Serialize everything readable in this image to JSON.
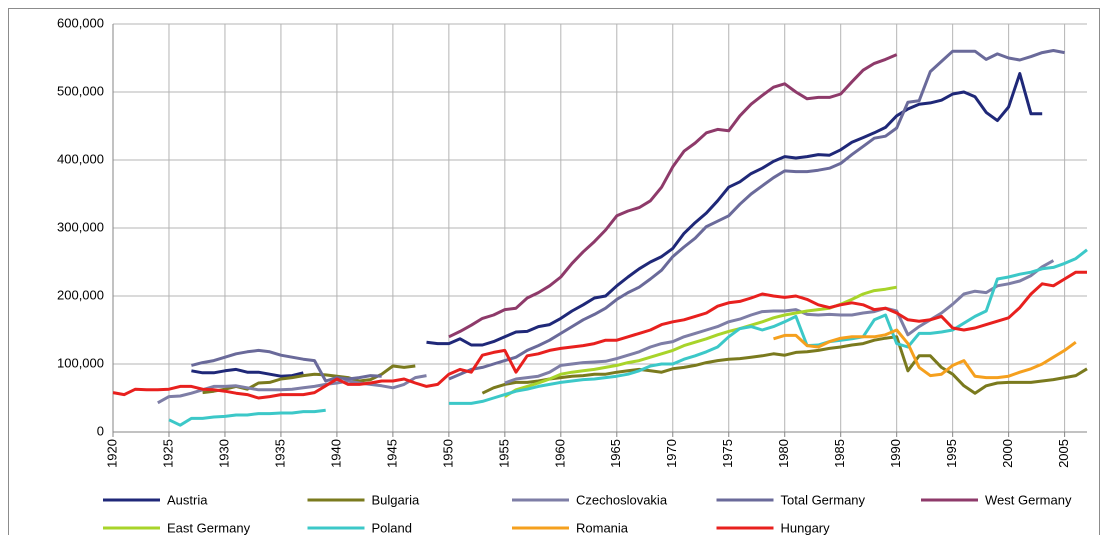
{
  "chart_data": {
    "type": "line",
    "x": [
      1920,
      1921,
      1922,
      1923,
      1924,
      1925,
      1926,
      1927,
      1928,
      1929,
      1930,
      1931,
      1932,
      1933,
      1934,
      1935,
      1936,
      1937,
      1938,
      1939,
      1940,
      1941,
      1942,
      1943,
      1944,
      1945,
      1946,
      1947,
      1948,
      1949,
      1950,
      1951,
      1952,
      1953,
      1954,
      1955,
      1956,
      1957,
      1958,
      1959,
      1960,
      1961,
      1962,
      1963,
      1964,
      1965,
      1966,
      1967,
      1968,
      1969,
      1970,
      1971,
      1972,
      1973,
      1974,
      1975,
      1976,
      1977,
      1978,
      1979,
      1980,
      1981,
      1982,
      1983,
      1984,
      1985,
      1986,
      1987,
      1988,
      1989,
      1990,
      1991,
      1992,
      1993,
      1994,
      1995,
      1996,
      1997,
      1998,
      1999,
      2000,
      2001,
      2002,
      2003,
      2004,
      2005,
      2006,
      2007
    ],
    "xlim": [
      1920,
      2007
    ],
    "xticks": [
      1920,
      1925,
      1930,
      1935,
      1940,
      1945,
      1950,
      1955,
      1960,
      1965,
      1970,
      1975,
      1980,
      1985,
      1990,
      1995,
      2000,
      2005
    ],
    "ylim": [
      0,
      600000
    ],
    "yticks": [
      0,
      {
        "value": 100000,
        "label": "100,000"
      },
      {
        "value": 200000,
        "label": "200,000"
      },
      {
        "value": 300000,
        "label": "300,000"
      },
      {
        "value": 400000,
        "label": "400,000"
      },
      {
        "value": 500000,
        "label": "500,000"
      },
      {
        "value": 600000,
        "label": "600,000"
      }
    ],
    "grid": true,
    "legend": "bottom",
    "series": [
      {
        "name": "Austria",
        "color": "#1f2878",
        "values": [
          null,
          null,
          null,
          null,
          null,
          null,
          null,
          90000,
          87000,
          87000,
          90000,
          92000,
          88000,
          88000,
          85000,
          82000,
          83000,
          87000,
          null,
          null,
          null,
          null,
          null,
          null,
          null,
          null,
          null,
          null,
          132000,
          130000,
          130000,
          137000,
          128000,
          128000,
          133000,
          140000,
          147000,
          148000,
          155000,
          158000,
          167000,
          178000,
          187000,
          197000,
          200000,
          215000,
          228000,
          240000,
          250000,
          258000,
          270000,
          292000,
          308000,
          322000,
          340000,
          360000,
          368000,
          380000,
          388000,
          398000,
          405000,
          403000,
          405000,
          408000,
          407000,
          415000,
          426000,
          433000,
          440000,
          448000,
          465000,
          475000,
          482000,
          484000,
          488000,
          497000,
          500000,
          493000,
          470000,
          458000,
          478000,
          527000,
          468000,
          468000,
          null,
          null,
          null,
          null
        ]
      },
      {
        "name": "Bulgaria",
        "color": "#7a7a1e",
        "values": [
          null,
          null,
          null,
          null,
          null,
          null,
          null,
          null,
          58000,
          60000,
          63000,
          67000,
          63000,
          72000,
          73000,
          78000,
          80000,
          83000,
          85000,
          84000,
          82000,
          80000,
          75000,
          77000,
          85000,
          97000,
          95000,
          97000,
          null,
          null,
          null,
          null,
          null,
          57000,
          65000,
          70000,
          73000,
          73000,
          75000,
          78000,
          80000,
          82000,
          83000,
          85000,
          85000,
          88000,
          90000,
          92000,
          90000,
          88000,
          93000,
          95000,
          98000,
          102000,
          105000,
          107000,
          108000,
          110000,
          112000,
          115000,
          113000,
          117000,
          118000,
          120000,
          123000,
          125000,
          128000,
          130000,
          135000,
          138000,
          140000,
          90000,
          112000,
          112000,
          95000,
          85000,
          68000,
          57000,
          68000,
          72000,
          73000,
          73000,
          73000,
          75000,
          77000,
          80000,
          83000,
          93000
        ]
      },
      {
        "name": "Czechoslovakia",
        "color": "#7e7ea6",
        "values": [
          null,
          null,
          null,
          null,
          43000,
          52000,
          53000,
          57000,
          62000,
          67000,
          67000,
          68000,
          65000,
          62000,
          62000,
          62000,
          63000,
          65000,
          67000,
          70000,
          72000,
          75000,
          72000,
          70000,
          68000,
          65000,
          70000,
          80000,
          83000,
          null,
          null,
          null,
          null,
          null,
          null,
          72000,
          78000,
          80000,
          82000,
          88000,
          98000,
          100000,
          102000,
          103000,
          104000,
          108000,
          113000,
          118000,
          125000,
          130000,
          133000,
          140000,
          145000,
          150000,
          155000,
          162000,
          166000,
          172000,
          177000,
          178000,
          178000,
          180000,
          173000,
          172000,
          173000,
          172000,
          172000,
          175000,
          177000,
          182000,
          178000,
          143000,
          155000,
          165000,
          175000,
          188000,
          203000,
          207000,
          205000,
          215000,
          218000,
          222000,
          230000,
          243000,
          252000,
          null,
          null,
          null
        ]
      },
      {
        "name": "Total Germany",
        "color": "#6a6a9a",
        "values": [
          null,
          null,
          null,
          null,
          null,
          null,
          null,
          98000,
          102000,
          105000,
          110000,
          115000,
          118000,
          120000,
          118000,
          113000,
          110000,
          107000,
          105000,
          75000,
          80000,
          78000,
          80000,
          83000,
          82000,
          null,
          null,
          null,
          null,
          null,
          78000,
          85000,
          92000,
          95000,
          100000,
          105000,
          110000,
          120000,
          127000,
          135000,
          145000,
          155000,
          165000,
          173000,
          182000,
          195000,
          205000,
          213000,
          225000,
          238000,
          258000,
          272000,
          285000,
          302000,
          310000,
          318000,
          335000,
          350000,
          362000,
          374000,
          384000,
          383000,
          383000,
          385000,
          388000,
          395000,
          408000,
          420000,
          432000,
          435000,
          447000,
          485000,
          487000,
          530000,
          545000,
          560000,
          560000,
          560000,
          548000,
          556000,
          550000,
          547000,
          552000,
          558000,
          561000,
          558000,
          null,
          null
        ]
      },
      {
        "name": "West Germany",
        "color": "#8e3a6a",
        "values": [
          null,
          null,
          null,
          null,
          null,
          null,
          null,
          null,
          null,
          null,
          null,
          null,
          null,
          null,
          null,
          null,
          null,
          null,
          null,
          null,
          null,
          null,
          null,
          null,
          null,
          null,
          null,
          null,
          null,
          null,
          140000,
          148000,
          157000,
          167000,
          172000,
          180000,
          182000,
          197000,
          205000,
          215000,
          228000,
          248000,
          265000,
          280000,
          297000,
          318000,
          325000,
          330000,
          340000,
          360000,
          390000,
          413000,
          425000,
          440000,
          445000,
          443000,
          465000,
          482000,
          495000,
          507000,
          512000,
          500000,
          490000,
          492000,
          492000,
          497000,
          515000,
          532000,
          542000,
          548000,
          555000,
          null,
          null,
          null,
          null,
          null,
          null,
          null,
          null,
          null,
          null,
          null,
          null,
          null,
          null,
          null,
          null,
          null
        ]
      },
      {
        "name": "East Germany",
        "color": "#a8d42a",
        "values": [
          null,
          null,
          null,
          null,
          null,
          null,
          null,
          null,
          null,
          null,
          null,
          null,
          null,
          null,
          null,
          null,
          null,
          null,
          null,
          null,
          null,
          null,
          null,
          null,
          null,
          null,
          null,
          null,
          null,
          null,
          null,
          null,
          null,
          null,
          null,
          52000,
          62000,
          67000,
          72000,
          78000,
          85000,
          88000,
          90000,
          92000,
          95000,
          98000,
          102000,
          105000,
          110000,
          115000,
          120000,
          127000,
          132000,
          137000,
          143000,
          148000,
          152000,
          157000,
          162000,
          168000,
          172000,
          175000,
          178000,
          180000,
          182000,
          188000,
          195000,
          203000,
          208000,
          210000,
          213000,
          null,
          null,
          null,
          null,
          null,
          null,
          null,
          null,
          null,
          null,
          null,
          null,
          null,
          null,
          null,
          null,
          null
        ]
      },
      {
        "name": "Poland",
        "color": "#3cc8c8",
        "values": [
          null,
          null,
          null,
          null,
          null,
          18000,
          10000,
          20000,
          20000,
          22000,
          23000,
          25000,
          25000,
          27000,
          27000,
          28000,
          28000,
          30000,
          30000,
          32000,
          null,
          null,
          null,
          null,
          null,
          null,
          null,
          null,
          null,
          null,
          42000,
          42000,
          42000,
          45000,
          50000,
          55000,
          60000,
          63000,
          67000,
          70000,
          73000,
          75000,
          77000,
          78000,
          80000,
          82000,
          85000,
          90000,
          97000,
          100000,
          100000,
          107000,
          112000,
          118000,
          125000,
          140000,
          152000,
          155000,
          150000,
          155000,
          162000,
          170000,
          127000,
          128000,
          133000,
          135000,
          137000,
          140000,
          165000,
          172000,
          130000,
          125000,
          145000,
          145000,
          147000,
          150000,
          160000,
          170000,
          178000,
          225000,
          228000,
          232000,
          235000,
          240000,
          242000,
          248000,
          255000,
          268000
        ]
      },
      {
        "name": "Romania",
        "color": "#f5a01e",
        "values": [
          null,
          null,
          null,
          null,
          null,
          null,
          null,
          null,
          null,
          null,
          null,
          null,
          null,
          null,
          null,
          null,
          null,
          null,
          null,
          null,
          null,
          null,
          null,
          null,
          null,
          null,
          null,
          null,
          null,
          null,
          null,
          null,
          null,
          null,
          null,
          null,
          null,
          null,
          null,
          null,
          null,
          null,
          null,
          null,
          null,
          null,
          null,
          null,
          null,
          null,
          null,
          null,
          null,
          null,
          null,
          null,
          null,
          null,
          null,
          137000,
          142000,
          142000,
          127000,
          125000,
          133000,
          138000,
          140000,
          140000,
          140000,
          143000,
          150000,
          130000,
          95000,
          83000,
          85000,
          98000,
          105000,
          82000,
          80000,
          80000,
          82000,
          88000,
          93000,
          100000,
          110000,
          120000,
          132000,
          null
        ]
      },
      {
        "name": "Hungary",
        "color": "#e8201e",
        "values": [
          58000,
          55000,
          63000,
          62000,
          62000,
          63000,
          67000,
          67000,
          63000,
          62000,
          60000,
          57000,
          55000,
          50000,
          52000,
          55000,
          55000,
          55000,
          58000,
          68000,
          78000,
          70000,
          70000,
          72000,
          75000,
          75000,
          78000,
          72000,
          67000,
          70000,
          85000,
          92000,
          88000,
          113000,
          117000,
          120000,
          88000,
          112000,
          115000,
          120000,
          123000,
          125000,
          127000,
          130000,
          135000,
          135000,
          140000,
          145000,
          150000,
          158000,
          162000,
          165000,
          170000,
          175000,
          185000,
          190000,
          192000,
          197000,
          203000,
          200000,
          198000,
          200000,
          195000,
          187000,
          183000,
          187000,
          190000,
          187000,
          180000,
          182000,
          175000,
          165000,
          163000,
          165000,
          170000,
          153000,
          150000,
          153000,
          158000,
          163000,
          168000,
          183000,
          203000,
          218000,
          215000,
          225000,
          235000,
          235000
        ]
      }
    ]
  }
}
